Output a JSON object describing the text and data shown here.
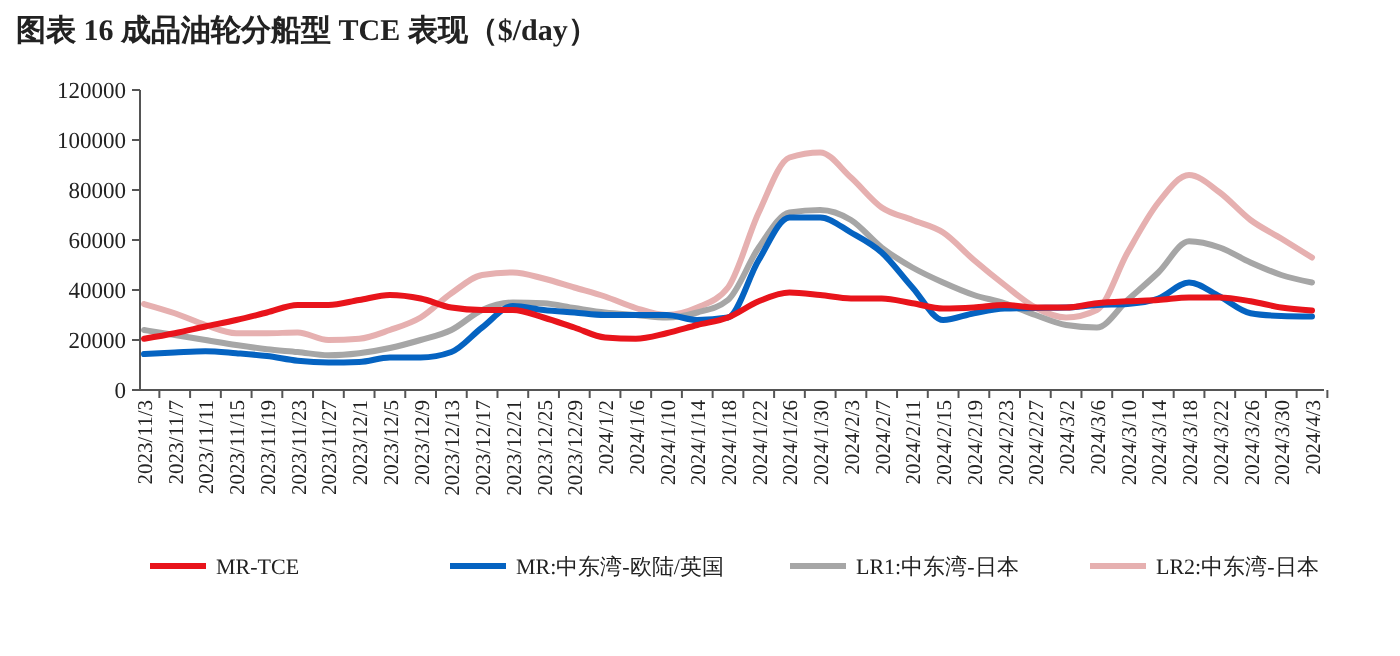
{
  "chart_data": {
    "type": "line",
    "title": "图表 16 成品油轮分船型 TCE 表现（$/day）",
    "categories": [
      "2023/11/3",
      "2023/11/7",
      "2023/11/11",
      "2023/11/15",
      "2023/11/19",
      "2023/11/23",
      "2023/11/27",
      "2023/12/1",
      "2023/12/5",
      "2023/12/9",
      "2023/12/13",
      "2023/12/17",
      "2023/12/21",
      "2023/12/25",
      "2023/12/29",
      "2024/1/2",
      "2024/1/6",
      "2024/1/10",
      "2024/1/14",
      "2024/1/18",
      "2024/1/22",
      "2024/1/26",
      "2024/1/30",
      "2024/2/3",
      "2024/2/7",
      "2024/2/11",
      "2024/2/15",
      "2024/2/19",
      "2024/2/23",
      "2024/2/27",
      "2024/3/2",
      "2024/3/6",
      "2024/3/10",
      "2024/3/14",
      "2024/3/18",
      "2024/3/22",
      "2024/3/26",
      "2024/3/30",
      "2024/4/3"
    ],
    "series": [
      {
        "name": "MR-TCE",
        "color": "#e8141b",
        "values": [
          20500,
          22700,
          25400,
          28000,
          31000,
          34000,
          34000,
          36000,
          38000,
          36600,
          33000,
          32000,
          32000,
          29000,
          25000,
          21000,
          20500,
          22700,
          26000,
          29000,
          35500,
          39000,
          38000,
          36600,
          36600,
          34700,
          32600,
          33000,
          34000,
          33000,
          33000,
          34700,
          35500,
          36000,
          37000,
          37000,
          35500,
          33000,
          31800
        ]
      },
      {
        "name": "MR:中东湾-欧陆/英国",
        "color": "#0563c1",
        "values": [
          14400,
          15000,
          15500,
          14700,
          13600,
          11700,
          11000,
          11200,
          13000,
          13000,
          15200,
          25000,
          33600,
          32000,
          31000,
          30000,
          30000,
          30000,
          28000,
          29000,
          52000,
          69000,
          69000,
          63000,
          55000,
          41000,
          28000,
          30700,
          32600,
          32800,
          33000,
          34000,
          34400,
          36600,
          43000,
          37400,
          30700,
          29600,
          29400
        ]
      },
      {
        "name": "LR1:中东湾-日本",
        "color": "#a6a6a6",
        "values": [
          24000,
          22000,
          20000,
          18000,
          16300,
          15200,
          13900,
          14700,
          16800,
          20000,
          24000,
          32000,
          35000,
          34700,
          32800,
          31000,
          30000,
          29000,
          31000,
          36000,
          57000,
          71000,
          72000,
          68000,
          57000,
          49000,
          43000,
          38000,
          34700,
          30000,
          26000,
          25000,
          36000,
          47000,
          59500,
          57000,
          51000,
          46000,
          43000
        ]
      },
      {
        "name": "LR2:中东湾-日本",
        "color": "#e6b0b0",
        "values": [
          34400,
          30700,
          26000,
          22700,
          22700,
          23000,
          20000,
          20500,
          24000,
          29000,
          38700,
          46000,
          47000,
          44600,
          41000,
          37400,
          32800,
          30000,
          33000,
          41000,
          71000,
          93000,
          95000,
          85000,
          73000,
          68000,
          63000,
          52000,
          42000,
          33000,
          29000,
          32000,
          55000,
          75000,
          86000,
          79000,
          68000,
          60600,
          53000
        ]
      }
    ],
    "ylim": [
      0,
      120000
    ],
    "yticks": [
      0,
      20000,
      40000,
      60000,
      80000,
      100000,
      120000
    ],
    "legend": "bottom",
    "grid": false,
    "marker": "none",
    "line_style": "solid"
  }
}
